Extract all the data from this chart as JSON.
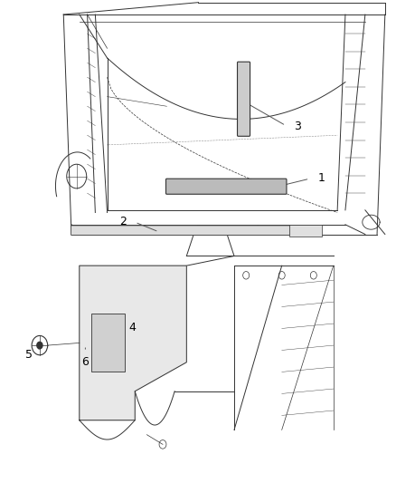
{
  "title": "",
  "background_color": "#ffffff",
  "fig_width": 4.39,
  "fig_height": 5.33,
  "dpi": 100,
  "line_color": "#333333",
  "leader_color": "#555555"
}
